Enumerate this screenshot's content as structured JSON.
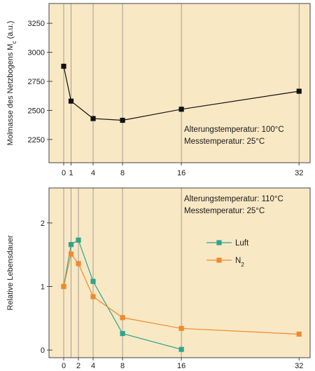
{
  "colors": {
    "panel_bg": "#f9e8c4",
    "axis": "#444444",
    "gridline": "#8a8a8a",
    "top_series": "#111111",
    "luft": "#2ea58c",
    "n2": "#ef8a2e"
  },
  "chart_data": [
    {
      "type": "line",
      "ylabel": {
        "base": "Molmasse des Netzbogens M",
        "sub": "c",
        "unit": " (a.u.)"
      },
      "xlabel": "",
      "xlim": [
        -2,
        33.5
      ],
      "ylim": [
        2050,
        3420
      ],
      "x_ticks": [
        0,
        1,
        4,
        8,
        16,
        32
      ],
      "y_ticks": [
        2250,
        2500,
        2750,
        3000,
        3250
      ],
      "grid_x": [
        0,
        1,
        4,
        8,
        16,
        32
      ],
      "legend": [],
      "annotations": [
        {
          "text": "Alterungstemperatur: 100°C"
        },
        {
          "text": "Messtemperatur: 25°C"
        }
      ],
      "series": [
        {
          "x": [
            0,
            1,
            4,
            8,
            16,
            32
          ],
          "y": [
            2880,
            2580,
            2430,
            2415,
            2510,
            2665
          ],
          "marker": "square"
        }
      ]
    },
    {
      "type": "line",
      "ylabel": {
        "base": "Relative Lebensdauer",
        "sub": "",
        "unit": ""
      },
      "xlabel": "",
      "xlim": [
        -2,
        33.5
      ],
      "ylim": [
        -0.12,
        2.55
      ],
      "x_ticks": [
        0,
        2,
        4,
        8,
        16,
        32
      ],
      "y_ticks": [
        0,
        1,
        2
      ],
      "grid_x": [
        0,
        1,
        2,
        4,
        8,
        16
      ],
      "annotations": [
        {
          "text": "Alterungstemperatur: 110°C"
        },
        {
          "text": "Messtemperatur: 25°C"
        }
      ],
      "legend": [
        {
          "base": "Luft",
          "sub": "",
          "color_key": "luft"
        },
        {
          "base": "N",
          "sub": "2",
          "color_key": "n2"
        }
      ],
      "series": [
        {
          "color_key": "luft",
          "x": [
            0,
            1,
            2,
            4,
            8,
            16
          ],
          "y": [
            1.0,
            1.66,
            1.73,
            1.08,
            0.26,
            0.01
          ]
        },
        {
          "color_key": "n2",
          "x": [
            0,
            1,
            2,
            4,
            8,
            16,
            32
          ],
          "y": [
            1.0,
            1.51,
            1.36,
            0.84,
            0.51,
            0.34,
            0.25
          ]
        }
      ]
    }
  ]
}
